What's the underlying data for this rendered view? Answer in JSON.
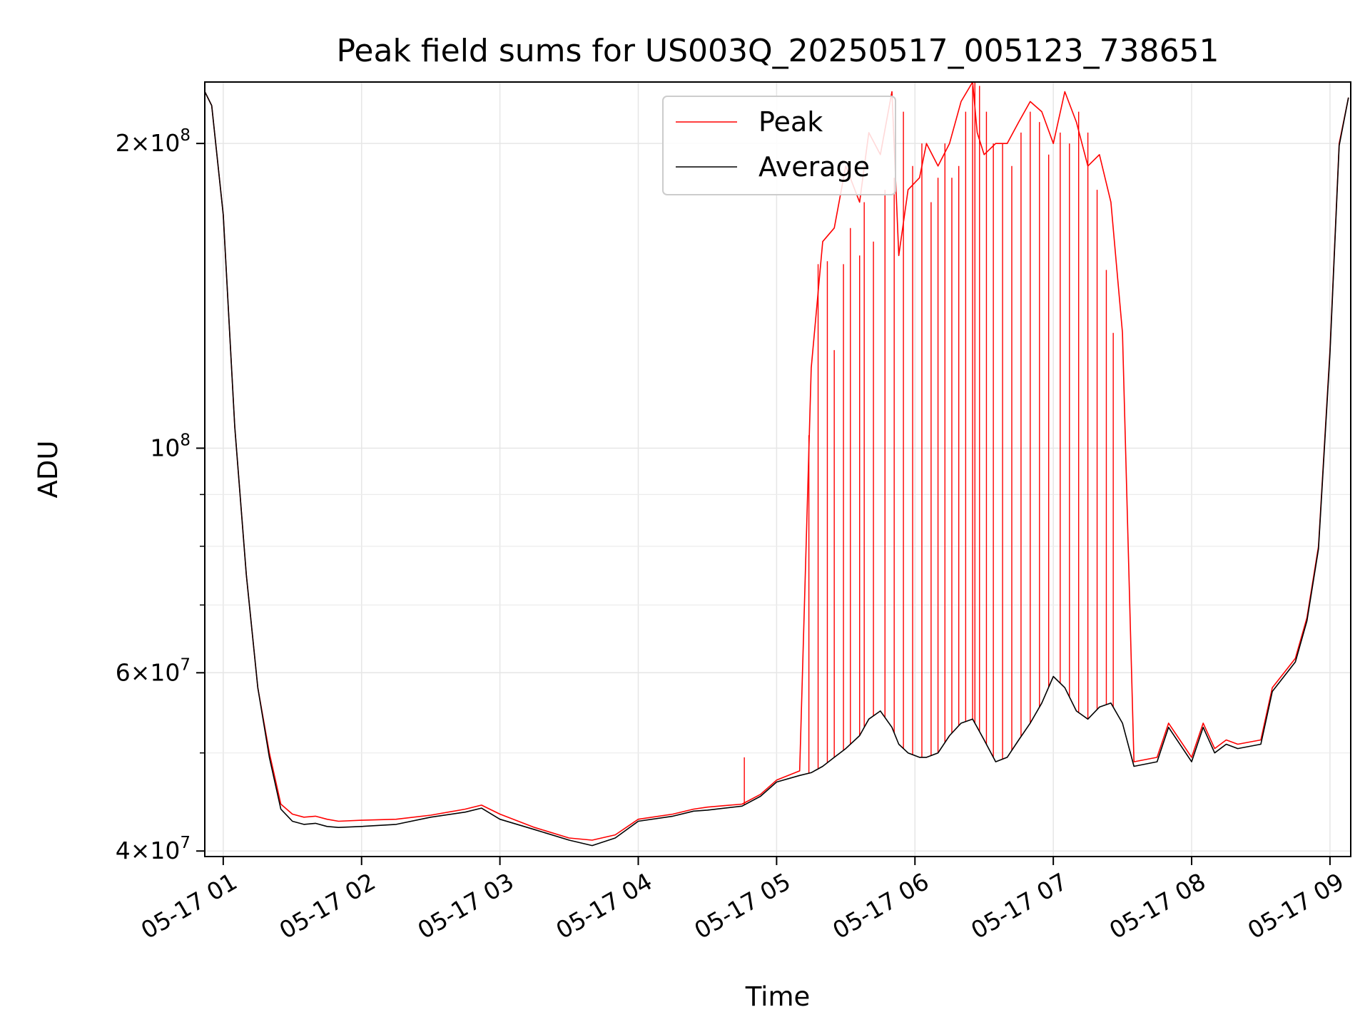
{
  "chart_data": {
    "type": "line",
    "title": "Peak field sums for US003Q_20250517_005123_738651",
    "xlabel": "Time",
    "ylabel": "ADU",
    "yscale": "log",
    "ylim": [
      39500000,
      230000000
    ],
    "xlim": [
      "2025-05-17 00:52",
      "2025-05-17 09:09"
    ],
    "grid": true,
    "legend_position": "upper center",
    "x_ticks": [
      "05-17 01",
      "05-17 02",
      "05-17 03",
      "05-17 04",
      "05-17 05",
      "05-17 06",
      "05-17 07",
      "05-17 08",
      "05-17 09"
    ],
    "x_tick_times": [
      "2025-05-17 01:00",
      "2025-05-17 02:00",
      "2025-05-17 03:00",
      "2025-05-17 04:00",
      "2025-05-17 05:00",
      "2025-05-17 06:00",
      "2025-05-17 07:00",
      "2025-05-17 08:00",
      "2025-05-17 09:00"
    ],
    "y_ticks": [
      {
        "value": 40000000,
        "base": "4",
        "exp": "7"
      },
      {
        "value": 60000000,
        "base": "6",
        "exp": "7"
      },
      {
        "value": 100000000,
        "base": "",
        "exp": "8"
      },
      {
        "value": 200000000,
        "base": "2",
        "exp": "8"
      }
    ],
    "y_minor_ticks": [
      50000000,
      70000000,
      80000000,
      90000000
    ],
    "series": [
      {
        "name": "Peak",
        "color": "#ff0000",
        "x": [
          "2025-05-17 00:52",
          "2025-05-17 00:55",
          "2025-05-17 01:00",
          "2025-05-17 01:05",
          "2025-05-17 01:10",
          "2025-05-17 01:15",
          "2025-05-17 01:20",
          "2025-05-17 01:25",
          "2025-05-17 01:30",
          "2025-05-17 01:35",
          "2025-05-17 01:40",
          "2025-05-17 01:45",
          "2025-05-17 01:50",
          "2025-05-17 02:00",
          "2025-05-17 02:15",
          "2025-05-17 02:30",
          "2025-05-17 02:45",
          "2025-05-17 02:52",
          "2025-05-17 03:00",
          "2025-05-17 03:15",
          "2025-05-17 03:30",
          "2025-05-17 03:40",
          "2025-05-17 03:50",
          "2025-05-17 04:00",
          "2025-05-17 04:15",
          "2025-05-17 04:24",
          "2025-05-17 04:30",
          "2025-05-17 04:45",
          "2025-05-17 04:53",
          "2025-05-17 05:00",
          "2025-05-17 05:10",
          "2025-05-17 05:15",
          "2025-05-17 05:20",
          "2025-05-17 05:25",
          "2025-05-17 05:30",
          "2025-05-17 05:36",
          "2025-05-17 05:40",
          "2025-05-17 05:45",
          "2025-05-17 05:50",
          "2025-05-17 05:53",
          "2025-05-17 05:57",
          "2025-05-17 06:02",
          "2025-05-17 06:05",
          "2025-05-17 06:10",
          "2025-05-17 06:15",
          "2025-05-17 06:20",
          "2025-05-17 06:25",
          "2025-05-17 06:27",
          "2025-05-17 06:30",
          "2025-05-17 06:35",
          "2025-05-17 06:40",
          "2025-05-17 06:45",
          "2025-05-17 06:50",
          "2025-05-17 06:55",
          "2025-05-17 07:00",
          "2025-05-17 07:05",
          "2025-05-17 07:10",
          "2025-05-17 07:15",
          "2025-05-17 07:20",
          "2025-05-17 07:25",
          "2025-05-17 07:30",
          "2025-05-17 07:35",
          "2025-05-17 07:45",
          "2025-05-17 07:50",
          "2025-05-17 08:00",
          "2025-05-17 08:05",
          "2025-05-17 08:10",
          "2025-05-17 08:15",
          "2025-05-17 08:20",
          "2025-05-17 08:30",
          "2025-05-17 08:35",
          "2025-05-17 08:45",
          "2025-05-17 08:50",
          "2025-05-17 08:55",
          "2025-05-17 09:00",
          "2025-05-17 09:04",
          "2025-05-17 09:08"
        ],
        "y": [
          225000000,
          218000000,
          170000000,
          105000000,
          75000000,
          58000000,
          50000000,
          44500000,
          43500000,
          43200000,
          43300000,
          43000000,
          42800000,
          42900000,
          43000000,
          43400000,
          44000000,
          44400000,
          43500000,
          42200000,
          41200000,
          41000000,
          41500000,
          43000000,
          43500000,
          44000000,
          44200000,
          44500000,
          45500000,
          47000000,
          48000000,
          120000000,
          160000000,
          165000000,
          190000000,
          175000000,
          205000000,
          195000000,
          225000000,
          155000000,
          180000000,
          185000000,
          200000000,
          190000000,
          200000000,
          220000000,
          230000000,
          205000000,
          195000000,
          200000000,
          200000000,
          210000000,
          220000000,
          215000000,
          200000000,
          225000000,
          210000000,
          190000000,
          195000000,
          175000000,
          130000000,
          49000000,
          49500000,
          53500000,
          49500000,
          53500000,
          50500000,
          51500000,
          51000000,
          51500000,
          58000000,
          62000000,
          68000000,
          80000000,
          125000000,
          200000000,
          222000000
        ]
      },
      {
        "name": "Average",
        "color": "#000000",
        "x": [
          "2025-05-17 00:52",
          "2025-05-17 00:55",
          "2025-05-17 01:00",
          "2025-05-17 01:05",
          "2025-05-17 01:10",
          "2025-05-17 01:15",
          "2025-05-17 01:20",
          "2025-05-17 01:25",
          "2025-05-17 01:30",
          "2025-05-17 01:35",
          "2025-05-17 01:40",
          "2025-05-17 01:45",
          "2025-05-17 01:50",
          "2025-05-17 02:00",
          "2025-05-17 02:15",
          "2025-05-17 02:30",
          "2025-05-17 02:45",
          "2025-05-17 02:52",
          "2025-05-17 03:00",
          "2025-05-17 03:15",
          "2025-05-17 03:30",
          "2025-05-17 03:40",
          "2025-05-17 03:50",
          "2025-05-17 04:00",
          "2025-05-17 04:15",
          "2025-05-17 04:24",
          "2025-05-17 04:30",
          "2025-05-17 04:45",
          "2025-05-17 04:53",
          "2025-05-17 05:00",
          "2025-05-17 05:10",
          "2025-05-17 05:15",
          "2025-05-17 05:20",
          "2025-05-17 05:25",
          "2025-05-17 05:30",
          "2025-05-17 05:36",
          "2025-05-17 05:40",
          "2025-05-17 05:45",
          "2025-05-17 05:50",
          "2025-05-17 05:53",
          "2025-05-17 05:57",
          "2025-05-17 06:02",
          "2025-05-17 06:05",
          "2025-05-17 06:10",
          "2025-05-17 06:15",
          "2025-05-17 06:20",
          "2025-05-17 06:25",
          "2025-05-17 06:27",
          "2025-05-17 06:30",
          "2025-05-17 06:35",
          "2025-05-17 06:40",
          "2025-05-17 06:45",
          "2025-05-17 06:50",
          "2025-05-17 06:55",
          "2025-05-17 07:00",
          "2025-05-17 07:05",
          "2025-05-17 07:10",
          "2025-05-17 07:15",
          "2025-05-17 07:20",
          "2025-05-17 07:25",
          "2025-05-17 07:30",
          "2025-05-17 07:35",
          "2025-05-17 07:45",
          "2025-05-17 07:50",
          "2025-05-17 08:00",
          "2025-05-17 08:05",
          "2025-05-17 08:10",
          "2025-05-17 08:15",
          "2025-05-17 08:20",
          "2025-05-17 08:30",
          "2025-05-17 08:35",
          "2025-05-17 08:45",
          "2025-05-17 08:50",
          "2025-05-17 08:55",
          "2025-05-17 09:00",
          "2025-05-17 09:04",
          "2025-05-17 09:08"
        ],
        "y": [
          225000000,
          218000000,
          170000000,
          105000000,
          75000000,
          58000000,
          49500000,
          44000000,
          42800000,
          42500000,
          42600000,
          42300000,
          42200000,
          42300000,
          42500000,
          43200000,
          43700000,
          44100000,
          43000000,
          42000000,
          41000000,
          40500000,
          41200000,
          42800000,
          43300000,
          43800000,
          43900000,
          44300000,
          45300000,
          46800000,
          47500000,
          47800000,
          48500000,
          49500000,
          50500000,
          52000000,
          54000000,
          55000000,
          53000000,
          51000000,
          50000000,
          49500000,
          49500000,
          50000000,
          52000000,
          53500000,
          54000000,
          53000000,
          51500000,
          49000000,
          49500000,
          51500000,
          53500000,
          56000000,
          59500000,
          58000000,
          55000000,
          54000000,
          55500000,
          56000000,
          53500000,
          48500000,
          49000000,
          53000000,
          49000000,
          53000000,
          50000000,
          51000000,
          50500000,
          51000000,
          57500000,
          61500000,
          67500000,
          79500000,
          124000000,
          199000000,
          222000000
        ]
      }
    ],
    "spikes": {
      "series": "Peak",
      "x": [
        "2025-05-17 04:46",
        "2025-05-17 05:14",
        "2025-05-17 05:18",
        "2025-05-17 05:22",
        "2025-05-17 05:25",
        "2025-05-17 05:29",
        "2025-05-17 05:32",
        "2025-05-17 05:36",
        "2025-05-17 05:38",
        "2025-05-17 05:42",
        "2025-05-17 05:47",
        "2025-05-17 05:51",
        "2025-05-17 05:55",
        "2025-05-17 05:59",
        "2025-05-17 06:03",
        "2025-05-17 06:07",
        "2025-05-17 06:10",
        "2025-05-17 06:13",
        "2025-05-17 06:16",
        "2025-05-17 06:19",
        "2025-05-17 06:22",
        "2025-05-17 06:25",
        "2025-05-17 06:26",
        "2025-05-17 06:28",
        "2025-05-17 06:31",
        "2025-05-17 06:34",
        "2025-05-17 06:38",
        "2025-05-17 06:42",
        "2025-05-17 06:46",
        "2025-05-17 06:50",
        "2025-05-17 06:54",
        "2025-05-17 06:58",
        "2025-05-17 07:03",
        "2025-05-17 07:07",
        "2025-05-17 07:11",
        "2025-05-17 07:15",
        "2025-05-17 07:19",
        "2025-05-17 07:23",
        "2025-05-17 07:26"
      ],
      "y": [
        49500000,
        103000000,
        152000000,
        153000000,
        125000000,
        152000000,
        165000000,
        155000000,
        175000000,
        160000000,
        180000000,
        185000000,
        215000000,
        190000000,
        200000000,
        175000000,
        185000000,
        200000000,
        185000000,
        190000000,
        215000000,
        228000000,
        230000000,
        228000000,
        215000000,
        200000000,
        200000000,
        190000000,
        205000000,
        215000000,
        210000000,
        195000000,
        205000000,
        200000000,
        215000000,
        205000000,
        180000000,
        150000000,
        130000000
      ]
    }
  }
}
